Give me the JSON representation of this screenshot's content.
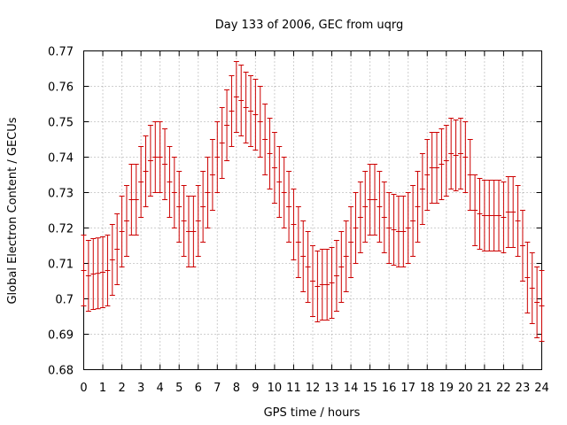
{
  "chart_data": {
    "type": "scatter",
    "title": "Day 133 of 2006, GEC from uqrg",
    "xlabel": "GPS time / hours",
    "ylabel": "Global Electron Content / GECUs",
    "xlim": [
      0,
      24
    ],
    "ylim": [
      0.68,
      0.77
    ],
    "grid": true,
    "legend": "none",
    "x_ticks": [
      "0",
      "1",
      "2",
      "3",
      "4",
      "5",
      "6",
      "7",
      "8",
      "9",
      "10",
      "11",
      "12",
      "13",
      "14",
      "15",
      "16",
      "17",
      "18",
      "19",
      "20",
      "21",
      "22",
      "23",
      "24"
    ],
    "y_ticks": [
      "0.68",
      "0.69",
      "0.7",
      "0.71",
      "0.72",
      "0.73",
      "0.74",
      "0.75",
      "0.76",
      "0.77"
    ],
    "color": "#cc0000",
    "series": [
      {
        "name": "",
        "errorbar": 0.01,
        "x": [
          0.0,
          0.25,
          0.5,
          0.75,
          1.0,
          1.25,
          1.5,
          1.75,
          2.0,
          2.25,
          2.5,
          2.75,
          3.0,
          3.25,
          3.5,
          3.75,
          4.0,
          4.25,
          4.5,
          4.75,
          5.0,
          5.25,
          5.5,
          5.75,
          6.0,
          6.25,
          6.5,
          6.75,
          7.0,
          7.25,
          7.5,
          7.75,
          8.0,
          8.25,
          8.5,
          8.75,
          9.0,
          9.25,
          9.5,
          9.75,
          10.0,
          10.25,
          10.5,
          10.75,
          11.0,
          11.25,
          11.5,
          11.75,
          12.0,
          12.25,
          12.5,
          12.75,
          13.0,
          13.25,
          13.5,
          13.75,
          14.0,
          14.25,
          14.5,
          14.75,
          15.0,
          15.25,
          15.5,
          15.75,
          16.0,
          16.25,
          16.5,
          16.75,
          17.0,
          17.25,
          17.5,
          17.75,
          18.0,
          18.25,
          18.5,
          18.75,
          19.0,
          19.25,
          19.5,
          19.75,
          20.0,
          20.25,
          20.5,
          20.75,
          21.0,
          21.25,
          21.5,
          21.75,
          22.0,
          22.25,
          22.5,
          22.75,
          23.0,
          23.25,
          23.5,
          23.75,
          24.0
        ],
        "y": [
          0.708,
          0.7065,
          0.707,
          0.7072,
          0.7075,
          0.708,
          0.711,
          0.714,
          0.719,
          0.722,
          0.728,
          0.728,
          0.733,
          0.736,
          0.739,
          0.74,
          0.74,
          0.738,
          0.733,
          0.73,
          0.726,
          0.722,
          0.719,
          0.719,
          0.722,
          0.726,
          0.73,
          0.735,
          0.74,
          0.744,
          0.749,
          0.753,
          0.757,
          0.756,
          0.754,
          0.753,
          0.752,
          0.75,
          0.745,
          0.741,
          0.737,
          0.733,
          0.73,
          0.726,
          0.721,
          0.716,
          0.712,
          0.709,
          0.705,
          0.7035,
          0.704,
          0.704,
          0.7045,
          0.7065,
          0.709,
          0.712,
          0.716,
          0.72,
          0.723,
          0.726,
          0.728,
          0.728,
          0.726,
          0.723,
          0.72,
          0.7195,
          0.719,
          0.719,
          0.72,
          0.722,
          0.726,
          0.731,
          0.735,
          0.737,
          0.737,
          0.738,
          0.739,
          0.741,
          0.7405,
          0.741,
          0.74,
          0.735,
          0.725,
          0.724,
          0.7235,
          0.7235,
          0.7235,
          0.7235,
          0.723,
          0.7245,
          0.7245,
          0.722,
          0.715,
          0.706,
          0.703,
          0.699,
          0.698
        ]
      }
    ]
  }
}
